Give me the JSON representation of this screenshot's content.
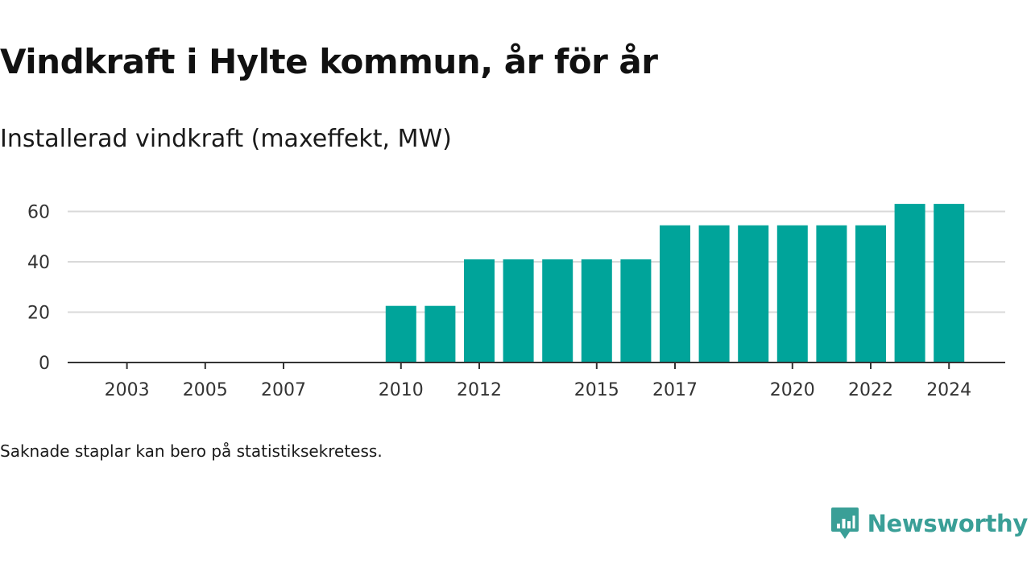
{
  "title": "Vindkraft i Hylte kommun, år för år",
  "subtitle": "Installerad vindkraft (maxeffekt, MW)",
  "note": "Saknade staplar kan bero på statistiksekretess.",
  "brand": {
    "name": "Newsworthy",
    "icon": "newsworthy-logo-icon"
  },
  "colors": {
    "bar": "#00a49a",
    "grid": "#d9d9d9",
    "axis": "#333333",
    "brand": "#3a9f97"
  },
  "chart_data": {
    "type": "bar",
    "title": "Vindkraft i Hylte kommun, år för år",
    "subtitle": "Installerad vindkraft (maxeffekt, MW)",
    "xlabel": "",
    "ylabel": "",
    "categories": [
      "2002",
      "2003",
      "2004",
      "2005",
      "2006",
      "2007",
      "2008",
      "2009",
      "2010",
      "2011",
      "2012",
      "2013",
      "2014",
      "2015",
      "2016",
      "2017",
      "2018",
      "2019",
      "2020",
      "2021",
      "2022",
      "2023",
      "2024"
    ],
    "values": [
      0,
      0,
      0,
      0,
      0,
      0,
      0,
      0,
      22.5,
      22.5,
      41,
      41,
      41,
      41,
      41,
      54.5,
      54.5,
      54.5,
      54.5,
      54.5,
      54.5,
      63,
      63
    ],
    "x_tick_labels": [
      "2003",
      "2005",
      "2007",
      "2010",
      "2012",
      "2015",
      "2017",
      "2020",
      "2022",
      "2024"
    ],
    "y_ticks": [
      0,
      20,
      40,
      60
    ],
    "ylim": [
      0,
      65
    ],
    "grid": true,
    "legend": "none"
  }
}
